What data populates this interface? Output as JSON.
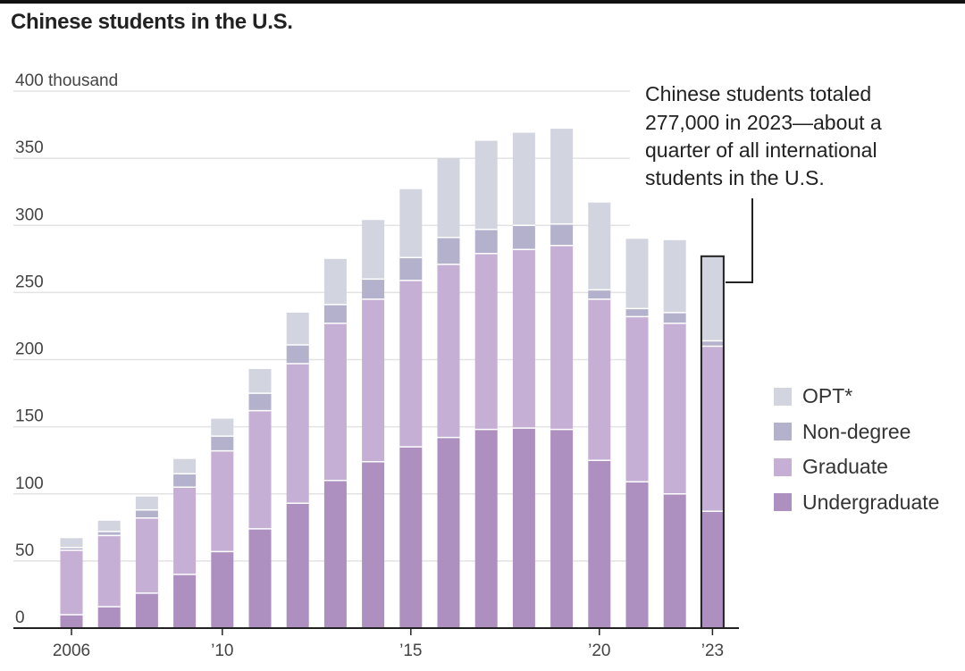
{
  "title": "Chinese students in the U.S.",
  "annotation": [
    "Chinese students totaled",
    "277,000 in 2023—about a",
    "quarter of all international",
    "students in the U.S."
  ],
  "chart_data": {
    "type": "bar",
    "stacked": true,
    "title": "Chinese students in the U.S.",
    "ylabel": "400 thousand",
    "ylim": [
      0,
      400
    ],
    "y_ticks": [
      "0",
      "50",
      "100",
      "150",
      "200",
      "250",
      "300",
      "350",
      "400 thousand"
    ],
    "y_tick_values": [
      0,
      50,
      100,
      150,
      200,
      250,
      300,
      350,
      400
    ],
    "x_tick_labels": [
      "2006",
      "’10",
      "’15",
      "’20",
      "’23"
    ],
    "x_tick_years": [
      2006,
      2010,
      2015,
      2020,
      2023
    ],
    "x": [
      2006,
      2007,
      2008,
      2009,
      2010,
      2011,
      2012,
      2013,
      2014,
      2015,
      2016,
      2017,
      2018,
      2019,
      2020,
      2021,
      2022,
      2023
    ],
    "highlight": 2023,
    "grid": true,
    "legend_position": "right",
    "series": [
      {
        "name": "Undergraduate",
        "color": "#ad8fc0",
        "values": [
          10,
          16,
          26,
          40,
          57,
          74,
          93,
          110,
          124,
          135,
          142,
          148,
          149,
          148,
          125,
          109,
          100,
          87
        ]
      },
      {
        "name": "Graduate",
        "color": "#c6afd4",
        "values": [
          48,
          53,
          56,
          65,
          75,
          88,
          104,
          117,
          121,
          124,
          129,
          131,
          133,
          137,
          120,
          123,
          127,
          123
        ]
      },
      {
        "name": "Non-degree",
        "color": "#b4b1cc",
        "values": [
          2,
          3,
          6,
          10,
          11,
          13,
          14,
          14,
          15,
          17,
          20,
          18,
          18,
          16,
          7,
          6,
          8,
          4
        ]
      },
      {
        "name": "OPT*",
        "color": "#d2d5e0",
        "values": [
          7,
          8,
          10,
          11,
          13,
          18,
          24,
          34,
          44,
          51,
          59,
          66,
          69,
          71,
          65,
          52,
          54,
          63
        ]
      }
    ],
    "legend_order": [
      "OPT*",
      "Non-degree",
      "Graduate",
      "Undergraduate"
    ]
  }
}
